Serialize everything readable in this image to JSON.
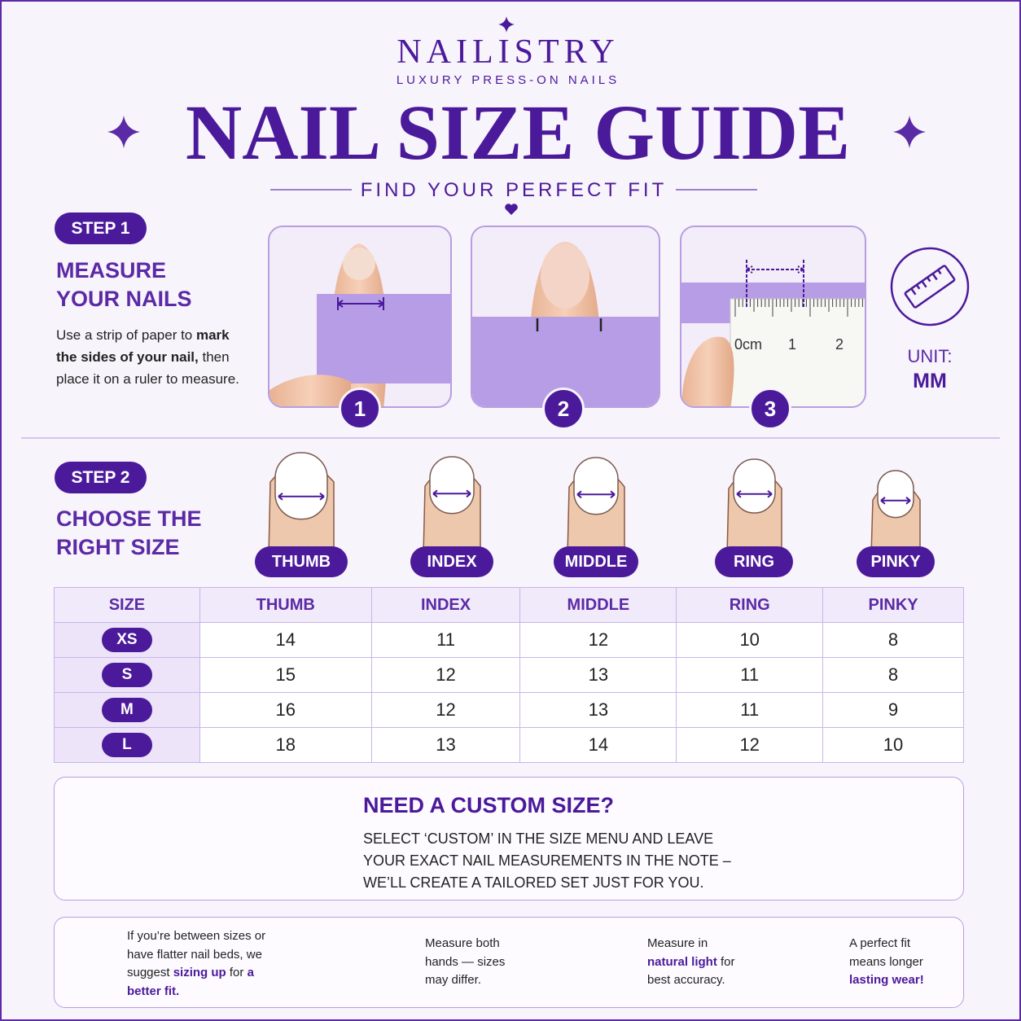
{
  "brand": {
    "name": "NAILISTRY",
    "tagline": "LUXURY PRESS-ON NAILS"
  },
  "title": "NAIL SIZE GUIDE",
  "subtitle": "FIND YOUR PERFECT FIT",
  "step1": {
    "badge": "STEP 1",
    "heading": [
      "MEASURE",
      "YOUR NAILS"
    ],
    "text": [
      {
        "text": "Use a strip of paper to "
      },
      {
        "text": "mark the sides of your nail,",
        "bold": true
      },
      {
        "text": " then place it on a ruler to measure."
      }
    ],
    "photo_numbers": [
      "1",
      "2",
      "3"
    ],
    "ruler_labels": [
      "0cm",
      "1",
      "2"
    ]
  },
  "unit": {
    "label": "UNIT:",
    "value": "MM"
  },
  "step2": {
    "badge": "STEP 2",
    "heading": [
      "CHOOSE THE",
      "RIGHT SIZE"
    ],
    "fingers": [
      "THUMB",
      "INDEX",
      "MIDDLE",
      "RING",
      "PINKY"
    ]
  },
  "table": {
    "header": [
      "SIZE",
      "THUMB",
      "INDEX",
      "MIDDLE",
      "RING",
      "PINKY"
    ],
    "rows": [
      [
        "XS",
        14,
        11,
        12,
        10,
        8
      ],
      [
        "S",
        15,
        12,
        13,
        11,
        8
      ],
      [
        "M",
        16,
        12,
        13,
        11,
        9
      ],
      [
        "L",
        18,
        13,
        14,
        12,
        10
      ]
    ]
  },
  "custom": {
    "heading": "NEED A CUSTOM SIZE?",
    "lines": [
      "SELECT ‘CUSTOM’ IN THE SIZE MENU AND LEAVE",
      "YOUR EXACT NAIL MEASUREMENTS IN THE NOTE –",
      "WE’LL CREATE A TAILORED SET JUST FOR YOU."
    ]
  },
  "tips": [
    {
      "segments": [
        {
          "text": "If you’re between sizes or have flatter nail beds, we suggest "
        },
        {
          "text": "sizing up",
          "bold": true
        },
        {
          "text": " for "
        },
        {
          "text": "a better fit.",
          "bold": true
        }
      ]
    },
    {
      "segments": [
        {
          "text": "Measure both hands — sizes may differ."
        }
      ]
    },
    {
      "segments": [
        {
          "text": "Measure in "
        },
        {
          "text": "natural light",
          "bold": true
        },
        {
          "text": " for best accuracy."
        }
      ]
    },
    {
      "segments": [
        {
          "text": "A perfect fit means longer "
        },
        {
          "text": "lasting wear!",
          "bold": true
        }
      ]
    }
  ]
}
